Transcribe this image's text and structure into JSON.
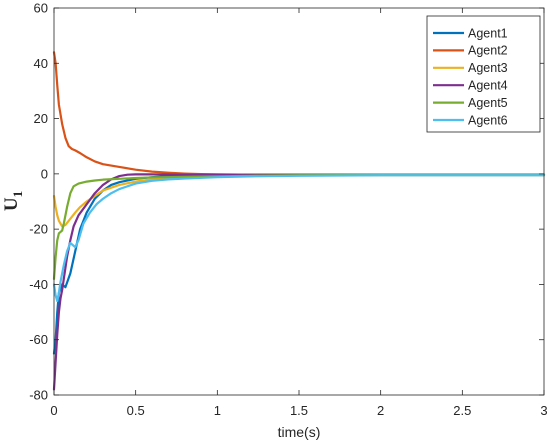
{
  "chart_data": {
    "type": "line",
    "title": "",
    "xlabel": "time(s)",
    "ylabel": "U",
    "ylabel_subscript": "1",
    "xlim": [
      0,
      3
    ],
    "ylim": [
      -80,
      60
    ],
    "xticks": [
      0,
      0.5,
      1,
      1.5,
      2,
      2.5,
      3
    ],
    "xtick_labels": [
      "0",
      "0.5",
      "1",
      "1.5",
      "2",
      "2.5",
      "3"
    ],
    "yticks": [
      -80,
      -60,
      -40,
      -20,
      0,
      20,
      40,
      60
    ],
    "ytick_labels": [
      "-80",
      "-60",
      "-40",
      "-20",
      "0",
      "20",
      "40",
      "60"
    ],
    "grid": false,
    "legend_position": "top-right",
    "series": [
      {
        "name": "Agent1",
        "color": "#0072BD",
        "x": [
          0.0,
          0.01,
          0.02,
          0.03,
          0.05,
          0.07,
          0.1,
          0.13,
          0.16,
          0.2,
          0.25,
          0.3,
          0.35,
          0.4,
          0.5,
          0.6,
          0.7,
          0.8,
          1.0,
          1.2,
          1.5,
          2.0,
          2.5,
          3.0
        ],
        "y": [
          -65,
          -60,
          -50,
          -43,
          -40,
          -41,
          -36,
          -28,
          -20,
          -14,
          -9,
          -6,
          -4,
          -3,
          -1.8,
          -1.2,
          -0.8,
          -0.6,
          -0.4,
          -0.3,
          -0.3,
          -0.3,
          -0.3,
          -0.3
        ]
      },
      {
        "name": "Agent2",
        "color": "#D95319",
        "x": [
          0.0,
          0.01,
          0.02,
          0.03,
          0.05,
          0.07,
          0.09,
          0.11,
          0.13,
          0.16,
          0.2,
          0.25,
          0.3,
          0.4,
          0.5,
          0.6,
          0.7,
          0.8,
          0.9,
          1.0,
          1.2,
          1.5,
          2.0,
          2.5,
          3.0
        ],
        "y": [
          44,
          40,
          32,
          25,
          18,
          13,
          10,
          9,
          8.5,
          7.5,
          6,
          4.5,
          3.5,
          2.5,
          1.5,
          0.8,
          0.4,
          0.1,
          -0.1,
          -0.2,
          -0.3,
          -0.3,
          -0.3,
          -0.3,
          -0.3
        ]
      },
      {
        "name": "Agent3",
        "color": "#EDB120",
        "x": [
          0.0,
          0.01,
          0.02,
          0.03,
          0.05,
          0.07,
          0.09,
          0.11,
          0.13,
          0.16,
          0.2,
          0.25,
          0.3,
          0.35,
          0.4,
          0.5,
          0.6,
          0.7,
          0.8,
          1.0,
          1.2,
          1.5,
          2.0,
          2.5,
          3.0
        ],
        "y": [
          -8,
          -12,
          -15,
          -17,
          -19,
          -18.5,
          -17,
          -15.5,
          -14,
          -12,
          -10,
          -8,
          -6,
          -5,
          -4,
          -2.8,
          -2,
          -1.5,
          -1.2,
          -0.8,
          -0.6,
          -0.5,
          -0.5,
          -0.5,
          -0.5
        ]
      },
      {
        "name": "Agent4",
        "color": "#7E2F8E",
        "x": [
          0.0,
          0.01,
          0.02,
          0.03,
          0.04,
          0.05,
          0.06,
          0.08,
          0.1,
          0.12,
          0.15,
          0.2,
          0.25,
          0.3,
          0.35,
          0.4,
          0.45,
          0.5,
          0.6,
          0.8,
          1.0,
          1.5,
          2.0,
          2.5,
          3.0
        ],
        "y": [
          -78,
          -68,
          -58,
          -50,
          -45,
          -42,
          -38,
          -30,
          -24,
          -19,
          -15,
          -11,
          -7,
          -4,
          -2,
          -0.8,
          -0.3,
          -0.2,
          -0.2,
          -0.3,
          -0.3,
          -0.3,
          -0.3,
          -0.3,
          -0.3
        ]
      },
      {
        "name": "Agent5",
        "color": "#77AC30",
        "x": [
          0.0,
          0.01,
          0.02,
          0.03,
          0.04,
          0.05,
          0.06,
          0.08,
          0.1,
          0.12,
          0.15,
          0.2,
          0.25,
          0.3,
          0.4,
          0.5,
          0.6,
          0.8,
          1.0,
          1.2,
          1.5,
          2.0,
          2.5,
          3.0
        ],
        "y": [
          -38,
          -30,
          -24,
          -21.5,
          -21,
          -20.5,
          -18,
          -12,
          -7,
          -4.5,
          -3.5,
          -2.8,
          -2.4,
          -2.1,
          -1.8,
          -1.5,
          -1.3,
          -1.1,
          -0.9,
          -0.7,
          -0.5,
          -0.4,
          -0.4,
          -0.4
        ]
      },
      {
        "name": "Agent6",
        "color": "#4DBEEE",
        "x": [
          0.0,
          0.01,
          0.02,
          0.03,
          0.04,
          0.05,
          0.06,
          0.08,
          0.1,
          0.12,
          0.13,
          0.15,
          0.18,
          0.22,
          0.26,
          0.3,
          0.35,
          0.4,
          0.5,
          0.6,
          0.7,
          0.8,
          1.0,
          1.2,
          1.5,
          2.0,
          2.5,
          3.0
        ],
        "y": [
          -40,
          -44,
          -46,
          -43,
          -39,
          -36,
          -33,
          -28,
          -25,
          -26,
          -26.5,
          -24,
          -18,
          -14,
          -11,
          -9,
          -7,
          -5.5,
          -3.5,
          -2.5,
          -2,
          -1.7,
          -1.2,
          -0.9,
          -0.7,
          -0.5,
          -0.5,
          -0.5
        ]
      }
    ]
  }
}
